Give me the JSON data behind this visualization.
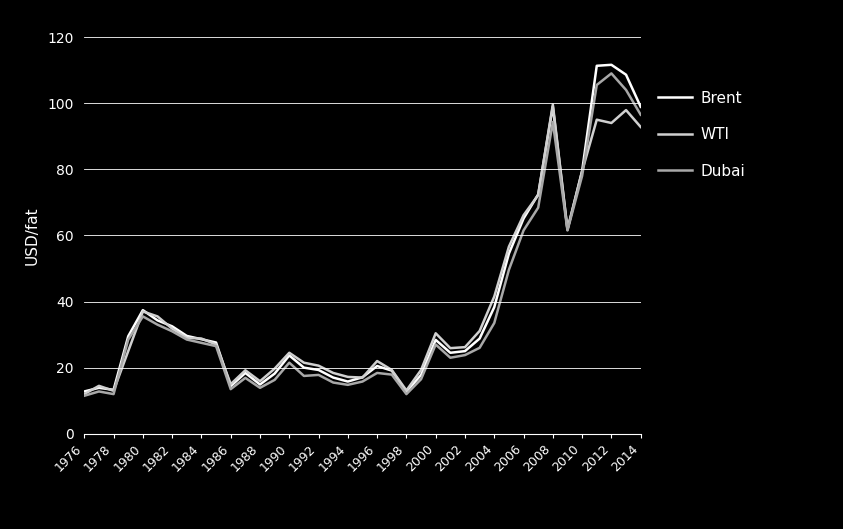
{
  "title": "",
  "ylabel": "USD/fat",
  "background_color": "#000000",
  "text_color": "#ffffff",
  "grid_color": "#ffffff",
  "line_color_brent": "#ffffff",
  "line_color_wti": "#d0d0d0",
  "line_color_dubai": "#a8a8a8",
  "years": [
    1976,
    1977,
    1978,
    1979,
    1980,
    1981,
    1982,
    1983,
    1984,
    1985,
    1986,
    1987,
    1988,
    1989,
    1990,
    1991,
    1992,
    1993,
    1994,
    1995,
    1996,
    1997,
    1998,
    1999,
    2000,
    2001,
    2002,
    2003,
    2004,
    2005,
    2006,
    2007,
    2008,
    2009,
    2010,
    2011,
    2012,
    2013,
    2014
  ],
  "brent": [
    12.8,
    13.9,
    13.3,
    29.5,
    37.4,
    34.3,
    32.5,
    29.6,
    28.6,
    27.6,
    14.4,
    18.4,
    14.9,
    18.2,
    23.7,
    20.0,
    19.3,
    17.0,
    15.8,
    17.1,
    20.5,
    19.1,
    12.7,
    17.8,
    28.4,
    24.5,
    25.0,
    28.8,
    38.3,
    54.5,
    65.1,
    72.4,
    99.0,
    61.7,
    79.5,
    111.3,
    111.6,
    108.6,
    98.9
  ],
  "wti": [
    12.0,
    14.5,
    13.0,
    25.0,
    37.0,
    35.5,
    31.8,
    29.0,
    28.8,
    27.0,
    15.0,
    19.2,
    15.9,
    19.7,
    24.5,
    21.5,
    20.6,
    18.4,
    17.2,
    17.0,
    22.0,
    19.3,
    13.1,
    19.3,
    30.4,
    25.9,
    26.2,
    31.1,
    41.5,
    56.6,
    66.1,
    72.2,
    99.6,
    61.9,
    79.4,
    95.0,
    94.0,
    97.9,
    92.8
  ],
  "dubai": [
    11.5,
    12.8,
    12.0,
    28.5,
    35.5,
    33.0,
    31.0,
    28.5,
    27.5,
    26.5,
    13.5,
    16.9,
    13.9,
    16.3,
    21.5,
    17.5,
    17.8,
    15.5,
    14.8,
    15.8,
    18.4,
    17.9,
    12.0,
    16.5,
    27.0,
    23.0,
    23.8,
    26.0,
    33.5,
    49.6,
    61.5,
    68.4,
    94.3,
    61.5,
    78.0,
    105.5,
    109.0,
    104.0,
    96.5
  ],
  "ylim": [
    0,
    120
  ],
  "yticks": [
    0,
    20,
    40,
    60,
    80,
    100,
    120
  ],
  "legend_entries": [
    "Brent",
    "WTI",
    "Dubai"
  ],
  "linewidth": 1.8,
  "xlim_start": 1976,
  "xlim_end": 2014
}
